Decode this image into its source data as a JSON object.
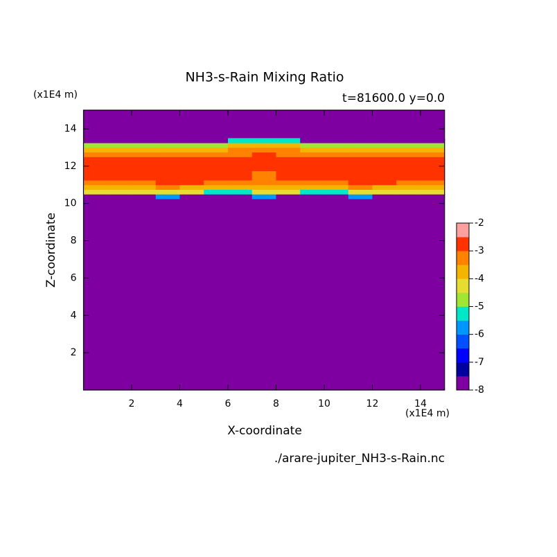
{
  "chart_data": {
    "type": "contour",
    "title": "NH3-s-Rain Mixing Ratio",
    "subtitle": "t=81600.0 y=0.0",
    "xlabel": "X-coordinate",
    "ylabel": "Z-coordinate",
    "xunit": "(x1E4 m)",
    "yunit": "(x1E4 m)",
    "footer": "./arare-jupiter_NH3-s-Rain.nc",
    "xlim": [
      0,
      15
    ],
    "ylim": [
      0,
      15
    ],
    "xticks": [
      2,
      4,
      6,
      8,
      10,
      12,
      14
    ],
    "yticks": [
      2,
      4,
      6,
      8,
      10,
      12,
      14
    ],
    "x": [
      0.5,
      1.5,
      2.5,
      3.5,
      4.5,
      5.5,
      6.5,
      7.5,
      8.5,
      9.5,
      10.5,
      11.5,
      12.5,
      13.5,
      14.5
    ],
    "y": [
      10.375,
      10.625,
      10.875,
      11.125,
      11.375,
      11.625,
      11.875,
      12.125,
      12.375,
      12.625,
      12.875,
      13.125,
      13.375
    ],
    "background": -8,
    "z": [
      [
        -8,
        -8,
        -8,
        -5.8,
        -8,
        -8,
        -8,
        -5.8,
        -8,
        -8,
        -8,
        -5.8,
        -8,
        -8,
        -8
      ],
      [
        -4.3,
        -4.3,
        -4.3,
        -4.3,
        -4.3,
        -5.5,
        -5.5,
        -4.3,
        -4.3,
        -5.5,
        -5.5,
        -4.3,
        -4.3,
        -4.3,
        -4.3
      ],
      [
        -3.7,
        -3.7,
        -3.7,
        -3.2,
        -3.7,
        -3.7,
        -3.7,
        -3.7,
        -3.7,
        -3.7,
        -3.7,
        -3.2,
        -3.7,
        -3.7,
        -3.7
      ],
      [
        -3.2,
        -3.2,
        -3.2,
        -2.8,
        -2.8,
        -3.2,
        -3.2,
        -3.2,
        -3.2,
        -3.2,
        -3.2,
        -2.8,
        -2.8,
        -3.2,
        -3.2
      ],
      [
        -2.8,
        -2.8,
        -2.8,
        -2.8,
        -2.8,
        -2.8,
        -2.8,
        -3.2,
        -2.8,
        -2.8,
        -2.8,
        -2.8,
        -2.8,
        -2.8,
        -2.8
      ],
      [
        -2.8,
        -2.8,
        -2.8,
        -2.8,
        -2.8,
        -2.8,
        -2.8,
        -3.2,
        -2.8,
        -2.8,
        -2.8,
        -2.8,
        -2.8,
        -2.8,
        -2.8
      ],
      [
        -2.8,
        -2.8,
        -2.8,
        -2.8,
        -2.8,
        -2.8,
        -2.8,
        -2.8,
        -2.8,
        -2.8,
        -2.8,
        -2.8,
        -2.8,
        -2.8,
        -2.8
      ],
      [
        -2.8,
        -2.8,
        -2.8,
        -2.8,
        -2.8,
        -2.8,
        -2.8,
        -2.8,
        -2.8,
        -2.8,
        -2.8,
        -2.8,
        -2.8,
        -2.8,
        -2.8
      ],
      [
        -2.8,
        -2.8,
        -2.8,
        -2.8,
        -2.8,
        -2.8,
        -2.8,
        -2.8,
        -2.8,
        -2.8,
        -2.8,
        -2.8,
        -2.8,
        -2.8,
        -2.8
      ],
      [
        -3.2,
        -3.2,
        -3.2,
        -3.2,
        -3.2,
        -3.2,
        -3.2,
        -2.8,
        -3.2,
        -3.2,
        -3.2,
        -3.2,
        -3.2,
        -3.2,
        -3.2
      ],
      [
        -3.7,
        -3.7,
        -3.7,
        -3.7,
        -3.7,
        -3.7,
        -3.2,
        -3.2,
        -3.2,
        -3.7,
        -3.7,
        -3.7,
        -3.7,
        -3.7,
        -3.7
      ],
      [
        -4.6,
        -4.6,
        -4.6,
        -4.6,
        -4.6,
        -4.6,
        -3.7,
        -3.7,
        -3.7,
        -4.6,
        -4.6,
        -4.6,
        -4.6,
        -4.6,
        -4.6
      ],
      [
        -8,
        -8,
        -8,
        -8,
        -8,
        -8,
        -5.2,
        -5.2,
        -5.2,
        -8,
        -8,
        -8,
        -8,
        -8,
        -8
      ]
    ],
    "levels": [
      -8,
      -7.5,
      -7,
      -6.5,
      -6,
      -5.5,
      -5,
      -4.5,
      -4,
      -3.5,
      -3,
      -2.5,
      -2
    ],
    "colors": [
      "#7f00a0",
      "#0000a0",
      "#0000ff",
      "#0050ff",
      "#0096ff",
      "#00e6c8",
      "#a0e632",
      "#e6dc32",
      "#f5b400",
      "#ff8200",
      "#ff3200",
      "#ffa0a0"
    ],
    "cbar_ticks": [
      -8,
      -7,
      -6,
      -5,
      -4,
      -3,
      -2
    ]
  }
}
